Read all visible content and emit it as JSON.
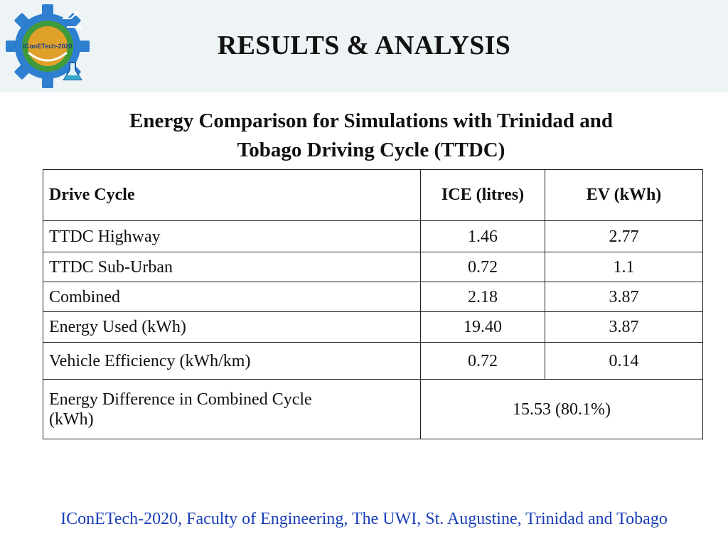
{
  "header": {
    "logo_text": "IConETech-2020",
    "title": "RESULTS & ANALYSIS"
  },
  "caption": {
    "line1": "Energy Comparison for Simulations with Trinidad and",
    "line2": "Tobago Driving Cycle (TTDC)"
  },
  "table": {
    "headers": [
      "Drive Cycle",
      "ICE (litres)",
      "EV (kWh)"
    ],
    "rows": [
      [
        "TTDC Highway",
        "1.46",
        "2.77"
      ],
      [
        "TTDC Sub-Urban",
        "0.72",
        "1.1"
      ],
      [
        "Combined",
        "2.18",
        "3.87"
      ],
      [
        "Energy Used (kWh)",
        "19.40",
        "3.87"
      ],
      [
        "Vehicle Efficiency (kWh/km)",
        "0.72",
        "0.14"
      ]
    ],
    "difference": {
      "label_line1": "Energy Difference in Combined Cycle",
      "label_line2": "(kWh)",
      "value": "15.53 (80.1%)"
    }
  },
  "footer": {
    "text": "IConETech-2020, Faculty of Engineering, The UWI, St. Augustine, Trinidad and Tobago"
  },
  "colors": {
    "header_band": "#eef4f6",
    "logo_gear": "#2f7fd0",
    "logo_ring": "#3f9b3a",
    "logo_inner": "#e0a12b",
    "footer_text": "#1a3fb8"
  },
  "icons": [
    "gear-logo-icon",
    "flask-icon",
    "circuit-icon"
  ]
}
